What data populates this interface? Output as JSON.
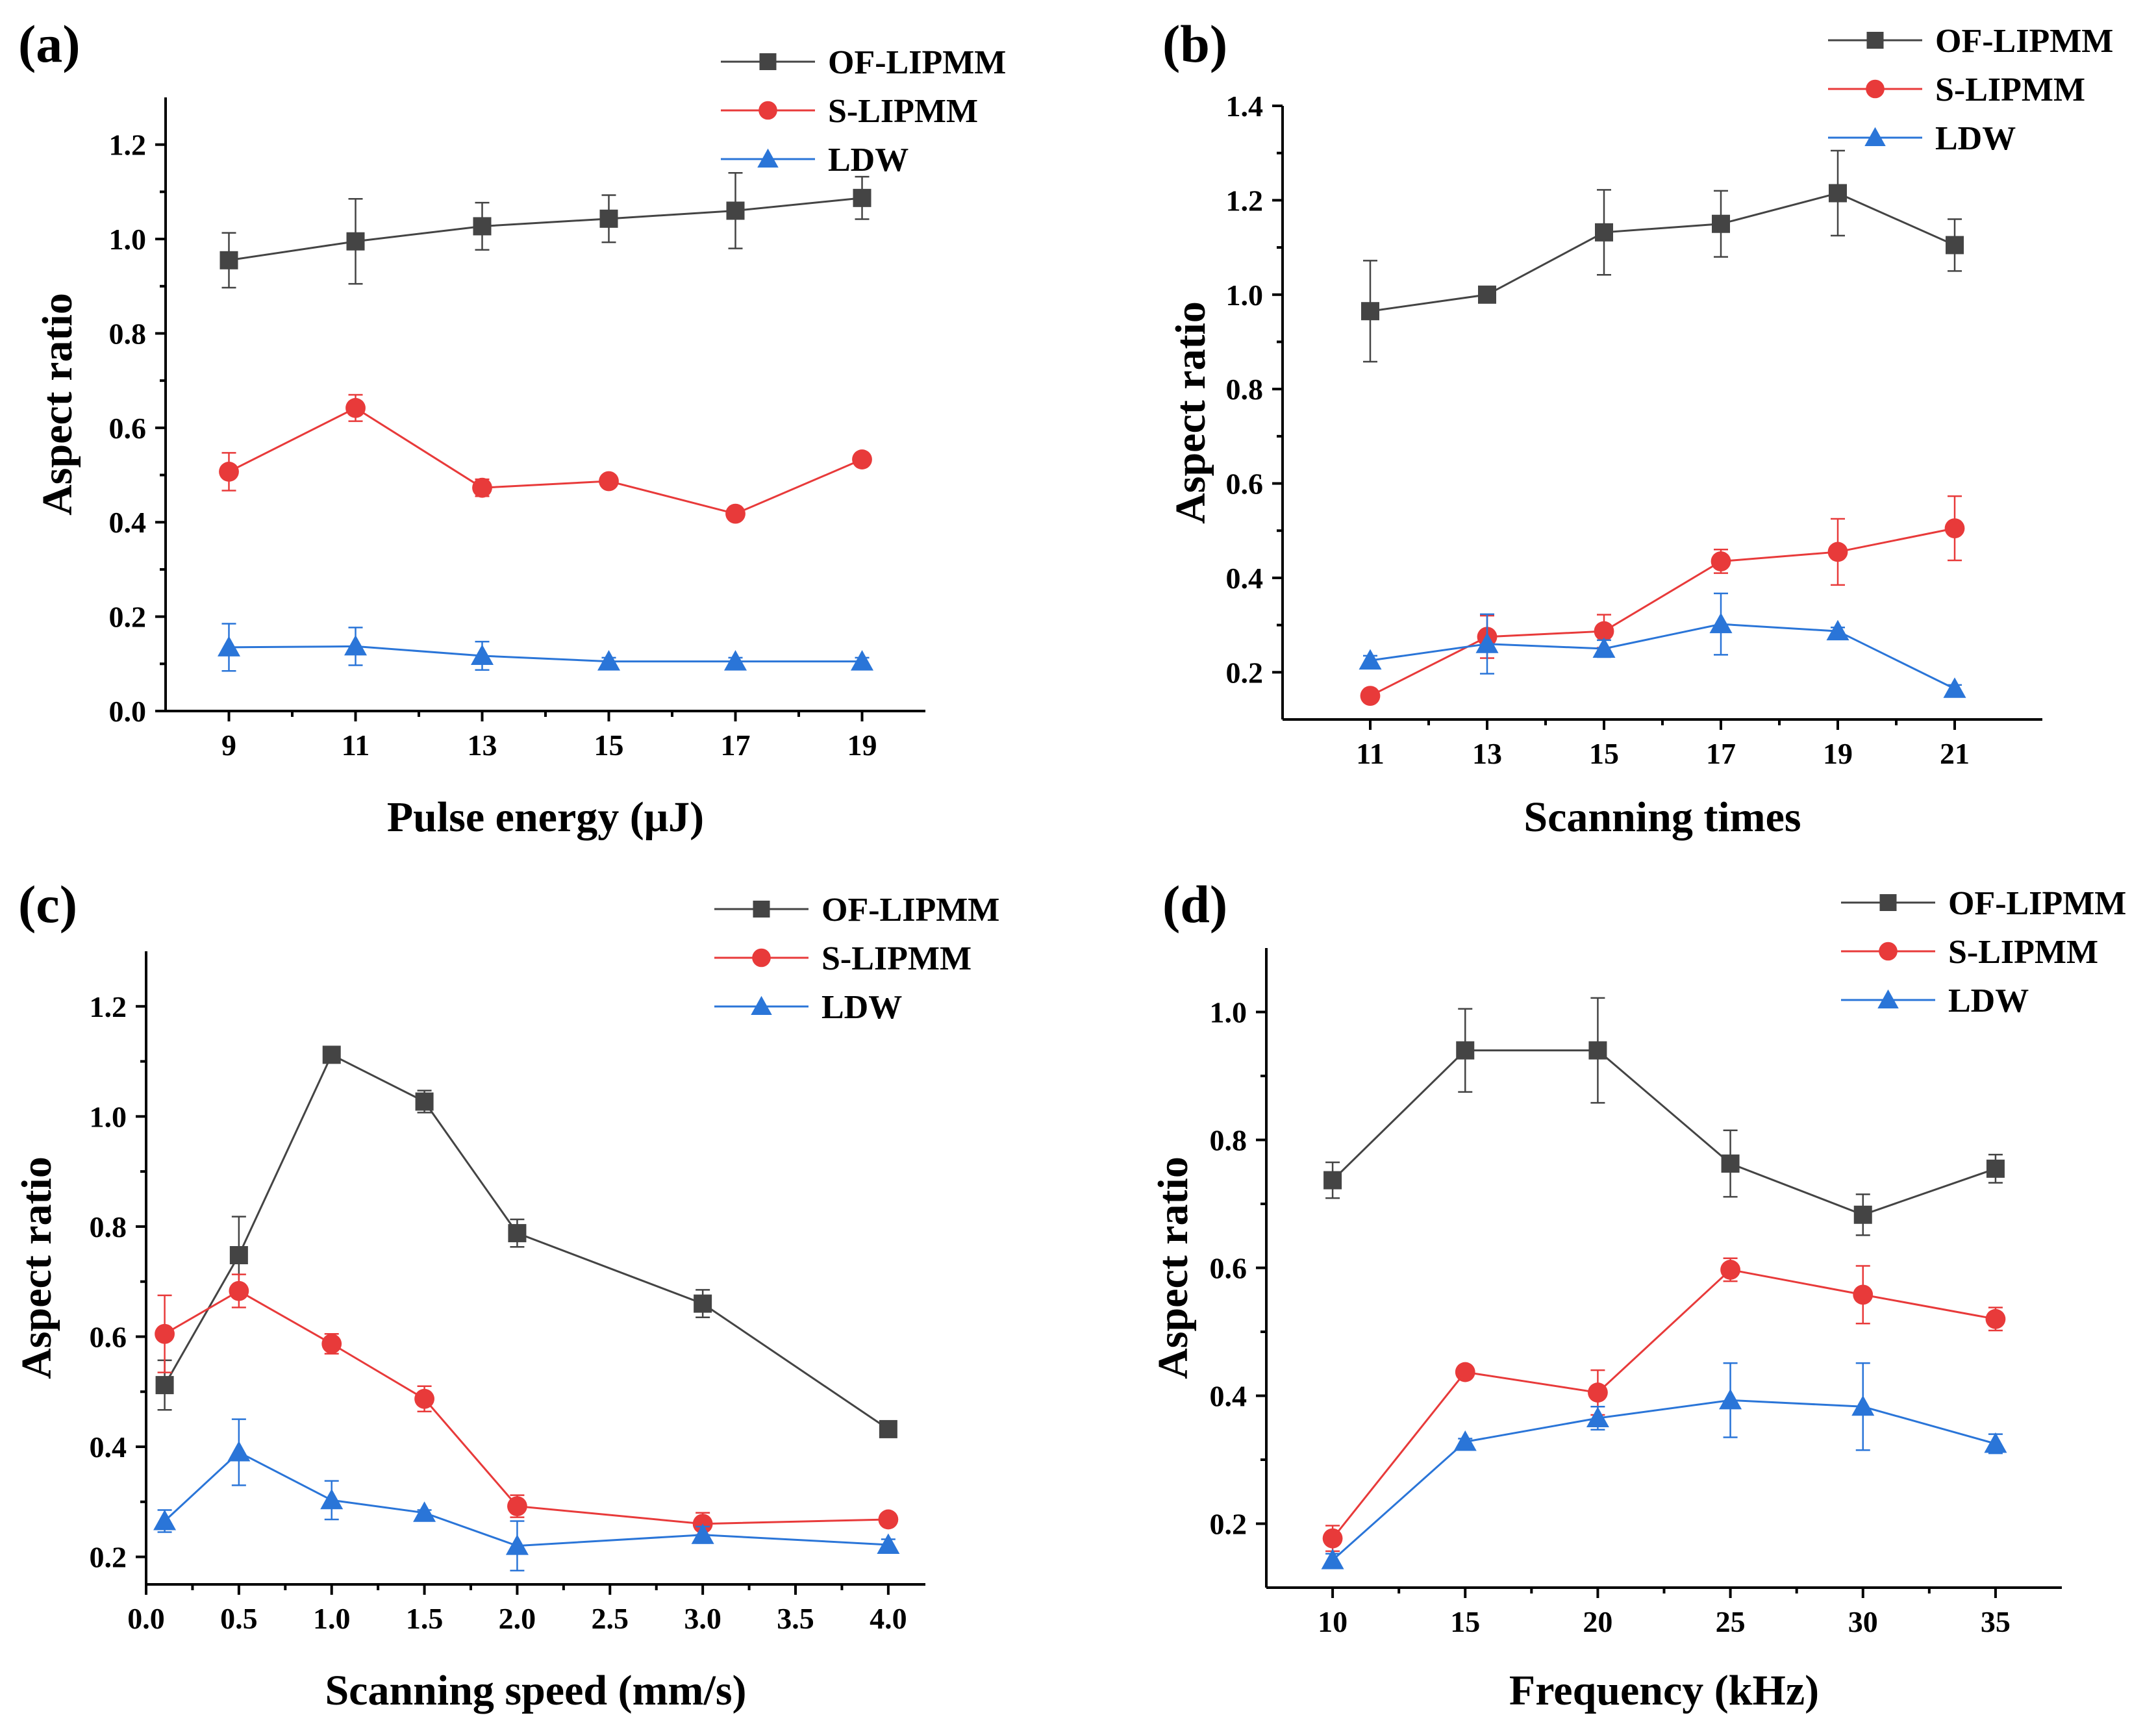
{
  "chart_data": [
    {
      "type": "line",
      "panel_label": "(a)",
      "xlabel": "Pulse energy (μJ)",
      "ylabel": "Aspect ratio",
      "xlim": [
        8,
        20
      ],
      "ylim": [
        0,
        1.3
      ],
      "xticks": [
        9,
        11,
        13,
        15,
        17,
        19
      ],
      "xtick_labels": [
        "9",
        "11",
        "13",
        "15",
        "17",
        "19"
      ],
      "yticks": [
        0,
        0.2,
        0.4,
        0.6,
        0.8,
        1.0,
        1.2
      ],
      "ytick_labels": [
        "0.0",
        "0.2",
        "0.4",
        "0.6",
        "0.8",
        "1.0",
        "1.2"
      ],
      "legend_position": "top-right",
      "x": [
        9,
        11,
        13,
        15,
        17,
        19
      ],
      "series": [
        {
          "name": "OF-LIPMM",
          "color": "#444444",
          "marker": "square",
          "values": [
            0.955,
            0.995,
            1.027,
            1.043,
            1.06,
            1.087
          ],
          "errors": [
            0.058,
            0.09,
            0.05,
            0.05,
            0.08,
            0.045
          ]
        },
        {
          "name": "S-LIPMM",
          "color": "#e83a3a",
          "marker": "circle",
          "values": [
            0.507,
            0.642,
            0.473,
            0.487,
            0.418,
            0.533
          ],
          "errors": [
            0.04,
            0.028,
            0.018,
            0.01,
            0.008,
            0.01
          ]
        },
        {
          "name": "LDW",
          "color": "#2a75d8",
          "marker": "triangle",
          "values": [
            0.135,
            0.137,
            0.117,
            0.105,
            0.105,
            0.105
          ],
          "errors": [
            0.05,
            0.04,
            0.03,
            0.008,
            0.008,
            0.008
          ]
        }
      ]
    },
    {
      "type": "line",
      "panel_label": "(b)",
      "xlabel": "Scanning times",
      "ylabel": "Aspect ratio",
      "xlim": [
        9.5,
        22.5
      ],
      "ylim": [
        0.1,
        1.4
      ],
      "xticks": [
        11,
        13,
        15,
        17,
        19,
        21
      ],
      "xtick_labels": [
        "11",
        "13",
        "15",
        "17",
        "19",
        "21"
      ],
      "yticks": [
        0.2,
        0.4,
        0.6,
        0.8,
        1.0,
        1.2,
        1.4
      ],
      "ytick_labels": [
        "0.2",
        "0.4",
        "0.6",
        "0.8",
        "1.0",
        "1.2",
        "1.4"
      ],
      "legend_position": "top-right",
      "x": [
        11,
        13,
        15,
        17,
        19,
        21
      ],
      "series": [
        {
          "name": "OF-LIPMM",
          "color": "#444444",
          "marker": "square",
          "values": [
            0.965,
            1.0,
            1.132,
            1.15,
            1.215,
            1.105
          ],
          "errors": [
            0.107,
            0.015,
            0.09,
            0.07,
            0.09,
            0.055
          ]
        },
        {
          "name": "S-LIPMM",
          "color": "#e83a3a",
          "marker": "circle",
          "values": [
            0.15,
            0.275,
            0.287,
            0.435,
            0.455,
            0.505
          ],
          "errors": [
            0.008,
            0.045,
            0.035,
            0.025,
            0.07,
            0.068
          ]
        },
        {
          "name": "LDW",
          "color": "#2a75d8",
          "marker": "triangle",
          "values": [
            0.225,
            0.26,
            0.25,
            0.302,
            0.287,
            0.165
          ],
          "errors": [
            0.01,
            0.063,
            0.018,
            0.065,
            0.008,
            0.008
          ]
        }
      ]
    },
    {
      "type": "line",
      "panel_label": "(c)",
      "xlabel": "Scanning speed (mm/s)",
      "ylabel": "Aspect ratio",
      "xlim": [
        0,
        4.2
      ],
      "ylim": [
        0.15,
        1.3
      ],
      "xticks": [
        0.0,
        0.5,
        1.0,
        1.5,
        2.0,
        2.5,
        3.0,
        3.5,
        4.0
      ],
      "xtick_labels": [
        "0.0",
        "0.5",
        "1.0",
        "1.5",
        "2.0",
        "2.5",
        "3.0",
        "3.5",
        "4.0"
      ],
      "yticks": [
        0.2,
        0.4,
        0.6,
        0.8,
        1.0,
        1.2
      ],
      "ytick_labels": [
        "0.2",
        "0.4",
        "0.6",
        "0.8",
        "1.0",
        "1.2"
      ],
      "legend_position": "top-right",
      "x": [
        0.1,
        0.5,
        1.0,
        1.5,
        2.0,
        3.0,
        4.0
      ],
      "series": [
        {
          "name": "OF-LIPMM",
          "color": "#444444",
          "marker": "square",
          "values": [
            0.512,
            0.748,
            1.112,
            1.027,
            0.788,
            0.66,
            0.432
          ],
          "errors": [
            0.045,
            0.07,
            0.005,
            0.02,
            0.025,
            0.025,
            0.005
          ]
        },
        {
          "name": "S-LIPMM",
          "color": "#e83a3a",
          "marker": "circle",
          "values": [
            0.605,
            0.683,
            0.587,
            0.487,
            0.292,
            0.26,
            0.268
          ],
          "errors": [
            0.07,
            0.03,
            0.018,
            0.023,
            0.02,
            0.02,
            0.005
          ]
        },
        {
          "name": "LDW",
          "color": "#2a75d8",
          "marker": "triangle",
          "values": [
            0.265,
            0.39,
            0.303,
            0.28,
            0.22,
            0.24,
            0.222
          ],
          "errors": [
            0.02,
            0.06,
            0.035,
            0.005,
            0.045,
            0.015,
            0.01
          ]
        }
      ]
    },
    {
      "type": "line",
      "panel_label": "(d)",
      "xlabel": "Frequency (kHz)",
      "ylabel": "Aspect ratio",
      "xlim": [
        7.5,
        37.5
      ],
      "ylim": [
        0.1,
        1.1
      ],
      "xticks": [
        10,
        15,
        20,
        25,
        30,
        35
      ],
      "xtick_labels": [
        "10",
        "15",
        "20",
        "25",
        "30",
        "35"
      ],
      "yticks": [
        0.2,
        0.4,
        0.6,
        0.8,
        1.0
      ],
      "ytick_labels": [
        "0.2",
        "0.4",
        "0.6",
        "0.8",
        "1.0"
      ],
      "legend_position": "top-right",
      "x": [
        10,
        15,
        20,
        25,
        30,
        35
      ],
      "series": [
        {
          "name": "OF-LIPMM",
          "color": "#444444",
          "marker": "square",
          "values": [
            0.737,
            0.94,
            0.94,
            0.763,
            0.683,
            0.755
          ],
          "errors": [
            0.028,
            0.065,
            0.082,
            0.052,
            0.032,
            0.022
          ]
        },
        {
          "name": "S-LIPMM",
          "color": "#e83a3a",
          "marker": "circle",
          "values": [
            0.177,
            0.437,
            0.405,
            0.597,
            0.558,
            0.52
          ],
          "errors": [
            0.02,
            0.005,
            0.035,
            0.018,
            0.045,
            0.018
          ]
        },
        {
          "name": "LDW",
          "color": "#2a75d8",
          "marker": "triangle",
          "values": [
            0.143,
            0.328,
            0.365,
            0.393,
            0.383,
            0.325
          ],
          "errors": [
            0.01,
            0.005,
            0.018,
            0.058,
            0.068,
            0.015
          ]
        }
      ]
    }
  ]
}
